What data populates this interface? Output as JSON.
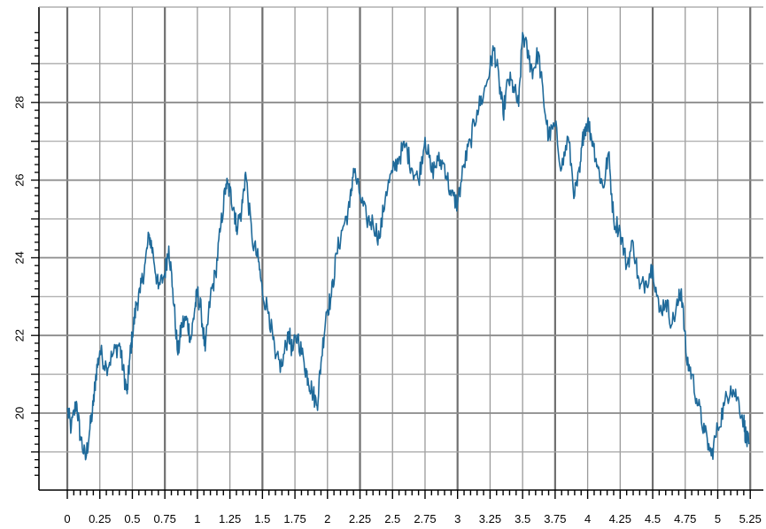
{
  "chart_data": {
    "type": "line",
    "title": "",
    "xlabel": "",
    "ylabel": "",
    "xlim": [
      0,
      5.25
    ],
    "ylim": [
      18.25,
      29.75
    ],
    "grid": true,
    "x_ticks": [
      0,
      0.25,
      0.5,
      0.75,
      1,
      1.25,
      1.5,
      1.75,
      2,
      2.25,
      2.5,
      2.75,
      3,
      3.25,
      3.5,
      3.75,
      4,
      4.25,
      4.5,
      4.75,
      5,
      5.25
    ],
    "x_tick_labels": [
      "0",
      "0.25",
      "0.5",
      "0.75",
      "1",
      "1.25",
      "1.5",
      "1.75",
      "2",
      "2.25",
      "2.5",
      "2.75",
      "3",
      "3.25",
      "3.5",
      "3.75",
      "4",
      "4.25",
      "4.5",
      "4.75",
      "5",
      "5.25"
    ],
    "y_ticks": [
      20,
      22,
      24,
      26,
      28
    ],
    "y_tick_labels": [
      "20",
      "22",
      "24",
      "26",
      "28"
    ],
    "series": [
      {
        "color": "#1f6a9a",
        "x": [
          0.0,
          0.03,
          0.07,
          0.1,
          0.14,
          0.17,
          0.2,
          0.22,
          0.25,
          0.3,
          0.35,
          0.4,
          0.43,
          0.46,
          0.48,
          0.5,
          0.53,
          0.56,
          0.6,
          0.63,
          0.66,
          0.7,
          0.75,
          0.78,
          0.81,
          0.85,
          0.88,
          0.92,
          0.95,
          0.98,
          1.0,
          1.03,
          1.06,
          1.1,
          1.14,
          1.18,
          1.22,
          1.25,
          1.28,
          1.3,
          1.34,
          1.37,
          1.42,
          1.47,
          1.5,
          1.55,
          1.6,
          1.65,
          1.7,
          1.73,
          1.77,
          1.82,
          1.85,
          1.88,
          1.92,
          1.95,
          1.99,
          2.03,
          2.07,
          2.12,
          2.17,
          2.2,
          2.25,
          2.3,
          2.35,
          2.4,
          2.45,
          2.5,
          2.55,
          2.6,
          2.65,
          2.7,
          2.75,
          2.8,
          2.85,
          2.9,
          2.95,
          3.0,
          3.05,
          3.1,
          3.15,
          3.2,
          3.25,
          3.28,
          3.32,
          3.35,
          3.39,
          3.43,
          3.47,
          3.5,
          3.55,
          3.58,
          3.62,
          3.66,
          3.7,
          3.75,
          3.8,
          3.85,
          3.9,
          3.94,
          3.97,
          4.0,
          4.04,
          4.08,
          4.12,
          4.16,
          4.2,
          4.25,
          4.3,
          4.35,
          4.4,
          4.45,
          4.5,
          4.55,
          4.6,
          4.65,
          4.7,
          4.72,
          4.76,
          4.8,
          4.85,
          4.9,
          4.95,
          5.0,
          5.05,
          5.1,
          5.15,
          5.2,
          5.22,
          5.24
        ],
        "y": [
          20.1,
          19.6,
          20.3,
          19.4,
          18.8,
          19.5,
          20.2,
          21.0,
          21.6,
          21.2,
          21.5,
          21.8,
          21.1,
          20.5,
          21.4,
          22.0,
          22.8,
          23.1,
          23.9,
          24.6,
          24.1,
          23.2,
          23.6,
          24.3,
          23.2,
          21.5,
          22.3,
          22.4,
          21.9,
          22.7,
          23.1,
          22.6,
          21.6,
          23.0,
          23.6,
          24.8,
          25.9,
          25.7,
          25.3,
          24.8,
          25.2,
          26.2,
          24.5,
          23.9,
          23.1,
          22.6,
          21.4,
          21.2,
          22.1,
          21.6,
          22.0,
          21.3,
          20.9,
          20.6,
          20.2,
          21.3,
          22.6,
          23.0,
          24.1,
          24.8,
          25.3,
          26.3,
          25.6,
          25.0,
          24.9,
          24.5,
          25.7,
          26.2,
          26.6,
          26.9,
          26.3,
          26.0,
          27.1,
          26.2,
          26.5,
          26.4,
          25.6,
          25.4,
          26.4,
          27.0,
          27.8,
          28.2,
          28.9,
          29.4,
          28.5,
          27.7,
          28.6,
          28.4,
          27.9,
          29.8,
          29.1,
          28.8,
          29.3,
          28.1,
          27.1,
          27.4,
          26.3,
          27.1,
          25.6,
          26.2,
          27.3,
          27.5,
          27.0,
          26.3,
          25.8,
          26.7,
          25.0,
          24.7,
          23.8,
          24.4,
          23.2,
          23.4,
          23.8,
          22.6,
          22.9,
          22.3,
          22.9,
          23.2,
          21.4,
          21.0,
          20.2,
          19.5,
          18.9,
          19.6,
          20.2,
          20.7,
          20.4,
          19.8,
          19.3,
          19.2
        ]
      }
    ]
  }
}
